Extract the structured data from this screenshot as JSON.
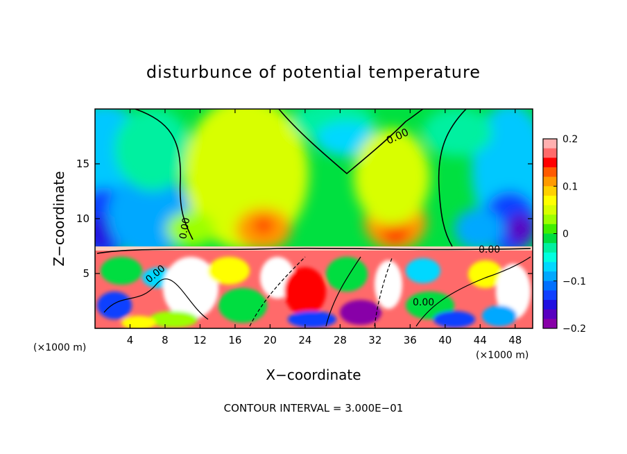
{
  "chart_data": {
    "type": "heatmap",
    "title": "disturbunce of potential temperature",
    "xlabel": "X−coordinate",
    "ylabel": "Z−coordinate",
    "x_unit_label": "(×1000 m)",
    "z_unit_label": "(×1000 m)",
    "footer": "CONTOUR INTERVAL = 3.000E−01",
    "xlim": [
      0,
      50
    ],
    "ylim": [
      0,
      20
    ],
    "x_ticks": [
      4,
      8,
      12,
      16,
      20,
      24,
      28,
      32,
      36,
      40,
      44,
      48
    ],
    "y_ticks": [
      5,
      10,
      15
    ],
    "colorbar": {
      "range": [
        -0.2,
        0.2
      ],
      "tick_values": [
        0.2,
        0.1,
        0,
        -0.1,
        -0.2
      ],
      "tick_labels": [
        "0.2",
        "0.1",
        "0",
        "−0.1",
        "−0.2"
      ],
      "colors": [
        "#ffb0b0",
        "#ff6a6a",
        "#ff0000",
        "#ff5a00",
        "#ff9a00",
        "#ffd000",
        "#ffff00",
        "#d8ff00",
        "#9cff00",
        "#40ee00",
        "#00dd40",
        "#00f0a0",
        "#00ffe0",
        "#00d8ff",
        "#00a8ff",
        "#0070ff",
        "#1040ff",
        "#2010e0",
        "#5800c0",
        "#8800a8"
      ]
    },
    "contour_labels": [
      "0.00",
      "0.00",
      "0.00",
      "0.00",
      "0.00"
    ]
  }
}
